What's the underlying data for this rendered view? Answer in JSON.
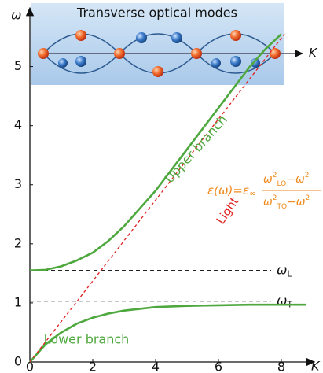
{
  "chart_data": {
    "type": "line",
    "inset_title": "Transverse optical modes",
    "inset_axis_label": "K",
    "x_label": "K",
    "y_label": "ω",
    "xlim": [
      0,
      9
    ],
    "ylim": [
      0,
      5.9
    ],
    "xticks": [
      0,
      2,
      4,
      6,
      8
    ],
    "yticks": [
      0,
      1,
      2,
      3,
      4,
      5
    ],
    "series": [
      {
        "name": "Upper branch",
        "color": "#4ea83e",
        "style": "solid",
        "x": [
          0,
          0.5,
          1,
          1.5,
          2,
          2.5,
          3,
          3.5,
          4,
          4.5,
          5,
          5.5,
          6,
          6.5,
          7,
          7.5,
          8
        ],
        "values": [
          1.55,
          1.56,
          1.62,
          1.72,
          1.85,
          2.05,
          2.3,
          2.6,
          2.9,
          3.25,
          3.6,
          3.95,
          4.3,
          4.65,
          5.0,
          5.3,
          5.55
        ]
      },
      {
        "name": "Lower branch",
        "color": "#4ea83e",
        "style": "solid",
        "x": [
          0,
          0.5,
          1,
          1.5,
          2,
          2.5,
          3,
          3.5,
          4,
          5,
          6,
          7,
          8,
          8.8
        ],
        "values": [
          0,
          0.3,
          0.5,
          0.65,
          0.75,
          0.82,
          0.87,
          0.9,
          0.93,
          0.95,
          0.96,
          0.97,
          0.97,
          0.97
        ]
      },
      {
        "name": "Light",
        "color": "#e02020",
        "style": "dashed",
        "x": [
          0,
          8.1
        ],
        "values": [
          0,
          5.55
        ]
      }
    ],
    "levels": [
      {
        "value": 1.55,
        "symbol": "ω",
        "sub": "L"
      },
      {
        "value": 1.03,
        "symbol": "ω",
        "sub": "T"
      }
    ],
    "formula": {
      "lhs": "ε(ω)=ε",
      "lhs_sub": "∞",
      "numerator": {
        "base": "ω",
        "sup": "2",
        "sub": "LO",
        "rest": "−ω",
        "rest_sup": "2"
      },
      "denominator": {
        "base": "ω",
        "sup": "2",
        "sub": "TO",
        "rest": "−ω",
        "rest_sup": "2"
      },
      "color": "#f08a1c"
    }
  }
}
